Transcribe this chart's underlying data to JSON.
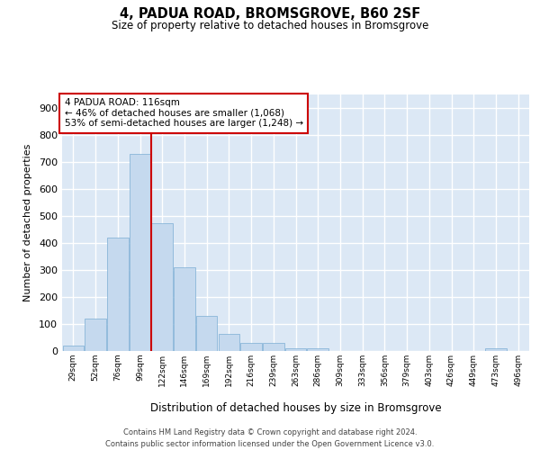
{
  "title": "4, PADUA ROAD, BROMSGROVE, B60 2SF",
  "subtitle": "Size of property relative to detached houses in Bromsgrove",
  "xlabel": "Distribution of detached houses by size in Bromsgrove",
  "ylabel": "Number of detached properties",
  "bar_color": "#c5d9ee",
  "bar_edge_color": "#7aadd4",
  "background_color": "#dce8f5",
  "grid_color": "#ffffff",
  "property_line_color": "#cc0000",
  "annotation_text": "4 PADUA ROAD: 116sqm\n← 46% of detached houses are smaller (1,068)\n53% of semi-detached houses are larger (1,248) →",
  "annotation_box_facecolor": "#ffffff",
  "annotation_box_edgecolor": "#cc0000",
  "bin_starts": [
    29,
    52,
    76,
    99,
    122,
    146,
    169,
    192,
    216,
    239,
    263,
    286,
    309,
    333,
    356,
    379,
    403,
    426,
    449,
    473,
    496
  ],
  "bin_labels": [
    "29sqm",
    "52sqm",
    "76sqm",
    "99sqm",
    "122sqm",
    "146sqm",
    "169sqm",
    "192sqm",
    "216sqm",
    "239sqm",
    "263sqm",
    "286sqm",
    "309sqm",
    "333sqm",
    "356sqm",
    "379sqm",
    "403sqm",
    "426sqm",
    "449sqm",
    "473sqm",
    "496sqm"
  ],
  "counts": [
    20,
    120,
    420,
    730,
    475,
    310,
    130,
    65,
    30,
    30,
    10,
    10,
    0,
    0,
    0,
    0,
    0,
    0,
    0,
    10,
    0
  ],
  "ylim": [
    0,
    950
  ],
  "yticks": [
    0,
    100,
    200,
    300,
    400,
    500,
    600,
    700,
    800,
    900
  ],
  "property_line_bin_index": 4,
  "footer_line1": "Contains HM Land Registry data © Crown copyright and database right 2024.",
  "footer_line2": "Contains public sector information licensed under the Open Government Licence v3.0."
}
